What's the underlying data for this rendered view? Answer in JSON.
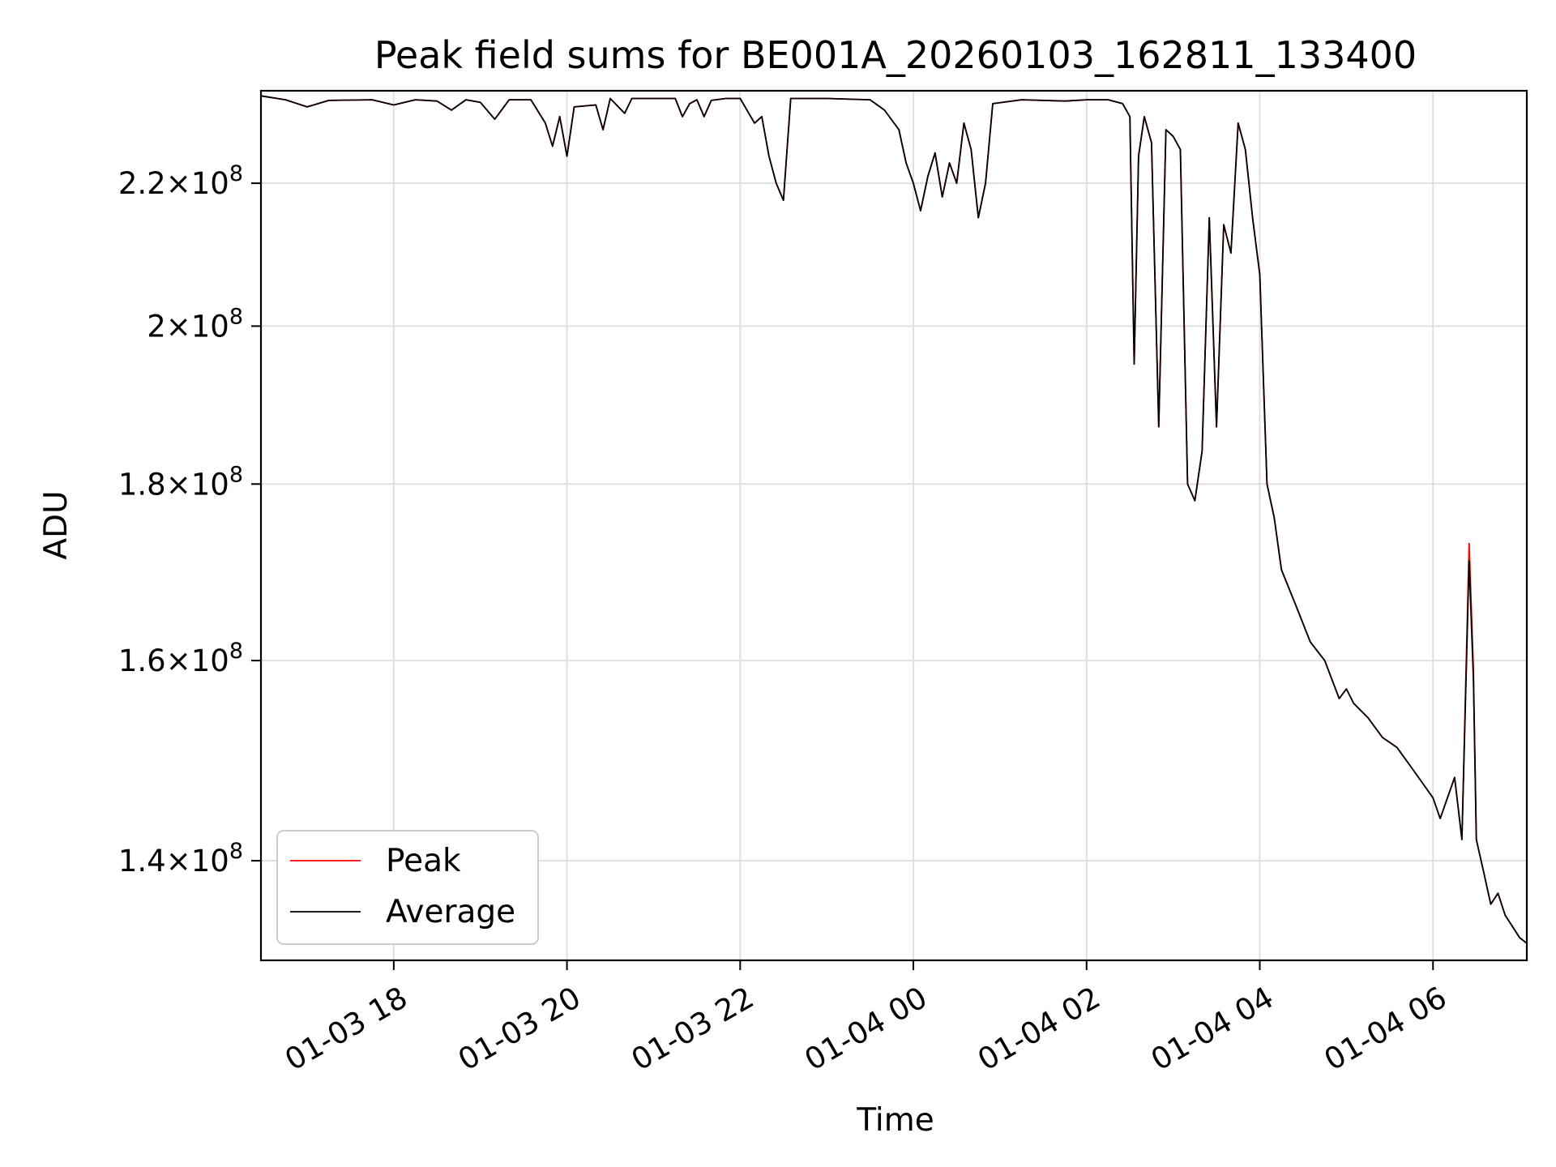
{
  "chart_data": {
    "type": "line",
    "title": "Peak field sums for BE001A_20260103_162811_133400",
    "xlabel": "Time",
    "ylabel": "ADU",
    "y_scale": "log",
    "xlim": [
      "2026-01-03 16:28",
      "2026-01-04 07:05"
    ],
    "ylim": [
      131000000.0,
      234000000.0
    ],
    "x_ticks": [
      {
        "at": "2026-01-03 18:00",
        "label": "01-03 18"
      },
      {
        "at": "2026-01-03 20:00",
        "label": "01-03 20"
      },
      {
        "at": "2026-01-03 22:00",
        "label": "01-03 22"
      },
      {
        "at": "2026-01-04 00:00",
        "label": "01-04 00"
      },
      {
        "at": "2026-01-04 02:00",
        "label": "01-04 02"
      },
      {
        "at": "2026-01-04 04:00",
        "label": "01-04 04"
      },
      {
        "at": "2026-01-04 06:00",
        "label": "01-04 06"
      }
    ],
    "y_ticks": [
      {
        "value": 140000000.0,
        "mantissa": "1.4"
      },
      {
        "value": 160000000.0,
        "mantissa": "1.6"
      },
      {
        "value": 180000000.0,
        "mantissa": "1.8"
      },
      {
        "value": 200000000.0,
        "mantissa": "2"
      },
      {
        "value": 220000000.0,
        "mantissa": "2.2"
      }
    ],
    "y_tick_base": "10",
    "y_tick_exponent": "8",
    "grid": true,
    "legend": {
      "position": "lower-left",
      "entries": [
        "Peak",
        "Average"
      ]
    },
    "series": [
      {
        "name": "Peak",
        "color": "#ff0000",
        "points": [
          [
            "2026-01-03 16:28",
            233200000.0
          ],
          [
            "2026-01-03 16:45",
            232600000.0
          ],
          [
            "2026-01-03 17:00",
            231500000.0
          ],
          [
            "2026-01-03 17:15",
            232500000.0
          ],
          [
            "2026-01-03 17:45",
            232600000.0
          ],
          [
            "2026-01-03 18:00",
            231800000.0
          ],
          [
            "2026-01-03 18:15",
            232600000.0
          ],
          [
            "2026-01-03 18:30",
            232400000.0
          ],
          [
            "2026-01-03 18:40",
            231000000.0
          ],
          [
            "2026-01-03 18:50",
            232600000.0
          ],
          [
            "2026-01-03 19:00",
            232200000.0
          ],
          [
            "2026-01-03 19:10",
            229600000.0
          ],
          [
            "2026-01-03 19:20",
            232600000.0
          ],
          [
            "2026-01-03 19:35",
            232600000.0
          ],
          [
            "2026-01-03 19:45",
            229000000.0
          ],
          [
            "2026-01-03 19:50",
            225500000.0
          ],
          [
            "2026-01-03 19:55",
            230000000.0
          ],
          [
            "2026-01-03 20:00",
            224000000.0
          ],
          [
            "2026-01-03 20:05",
            231500000.0
          ],
          [
            "2026-01-03 20:20",
            231800000.0
          ],
          [
            "2026-01-03 20:25",
            228000000.0
          ],
          [
            "2026-01-03 20:30",
            232800000.0
          ],
          [
            "2026-01-03 20:40",
            230500000.0
          ],
          [
            "2026-01-03 20:45",
            232800000.0
          ],
          [
            "2026-01-03 21:15",
            232800000.0
          ],
          [
            "2026-01-03 21:20",
            230000000.0
          ],
          [
            "2026-01-03 21:25",
            232000000.0
          ],
          [
            "2026-01-03 21:30",
            232600000.0
          ],
          [
            "2026-01-03 21:35",
            230000000.0
          ],
          [
            "2026-01-03 21:40",
            232500000.0
          ],
          [
            "2026-01-03 21:50",
            232800000.0
          ],
          [
            "2026-01-03 22:00",
            232800000.0
          ],
          [
            "2026-01-03 22:10",
            229000000.0
          ],
          [
            "2026-01-03 22:15",
            230000000.0
          ],
          [
            "2026-01-03 22:20",
            224000000.0
          ],
          [
            "2026-01-03 22:25",
            220000000.0
          ],
          [
            "2026-01-03 22:30",
            217500000.0
          ],
          [
            "2026-01-03 22:35",
            232800000.0
          ],
          [
            "2026-01-03 23:00",
            232800000.0
          ],
          [
            "2026-01-03 23:30",
            232600000.0
          ],
          [
            "2026-01-03 23:40",
            231000000.0
          ],
          [
            "2026-01-03 23:50",
            228000000.0
          ],
          [
            "2026-01-03 23:55",
            223000000.0
          ],
          [
            "2026-01-04 00:00",
            220000000.0
          ],
          [
            "2026-01-04 00:05",
            216000000.0
          ],
          [
            "2026-01-04 00:10",
            221000000.0
          ],
          [
            "2026-01-04 00:15",
            224500000.0
          ],
          [
            "2026-01-04 00:20",
            218000000.0
          ],
          [
            "2026-01-04 00:25",
            223000000.0
          ],
          [
            "2026-01-04 00:30",
            220000000.0
          ],
          [
            "2026-01-04 00:35",
            229000000.0
          ],
          [
            "2026-01-04 00:40",
            225000000.0
          ],
          [
            "2026-01-04 00:45",
            215000000.0
          ],
          [
            "2026-01-04 00:50",
            220000000.0
          ],
          [
            "2026-01-04 00:55",
            232000000.0
          ],
          [
            "2026-01-04 01:15",
            232600000.0
          ],
          [
            "2026-01-04 01:45",
            232400000.0
          ],
          [
            "2026-01-04 02:00",
            232600000.0
          ],
          [
            "2026-01-04 02:15",
            232600000.0
          ],
          [
            "2026-01-04 02:25",
            232000000.0
          ],
          [
            "2026-01-04 02:30",
            230000000.0
          ],
          [
            "2026-01-04 02:33",
            195000000.0
          ],
          [
            "2026-01-04 02:36",
            224000000.0
          ],
          [
            "2026-01-04 02:40",
            230000000.0
          ],
          [
            "2026-01-04 02:45",
            226000000.0
          ],
          [
            "2026-01-04 02:50",
            187000000.0
          ],
          [
            "2026-01-04 02:55",
            228000000.0
          ],
          [
            "2026-01-04 03:00",
            227000000.0
          ],
          [
            "2026-01-04 03:05",
            225000000.0
          ],
          [
            "2026-01-04 03:10",
            180000000.0
          ],
          [
            "2026-01-04 03:15",
            178000000.0
          ],
          [
            "2026-01-04 03:20",
            184000000.0
          ],
          [
            "2026-01-04 03:25",
            215000000.0
          ],
          [
            "2026-01-04 03:30",
            187000000.0
          ],
          [
            "2026-01-04 03:35",
            214000000.0
          ],
          [
            "2026-01-04 03:40",
            210000000.0
          ],
          [
            "2026-01-04 03:45",
            229000000.0
          ],
          [
            "2026-01-04 03:50",
            225000000.0
          ],
          [
            "2026-01-04 03:55",
            215000000.0
          ],
          [
            "2026-01-04 04:00",
            207000000.0
          ],
          [
            "2026-01-04 04:05",
            180000000.0
          ],
          [
            "2026-01-04 04:10",
            176000000.0
          ],
          [
            "2026-01-04 04:15",
            170000000.0
          ],
          [
            "2026-01-04 04:25",
            166000000.0
          ],
          [
            "2026-01-04 04:35",
            162000000.0
          ],
          [
            "2026-01-04 04:45",
            160000000.0
          ],
          [
            "2026-01-04 04:55",
            156000000.0
          ],
          [
            "2026-01-04 05:00",
            157000000.0
          ],
          [
            "2026-01-04 05:05",
            155500000.0
          ],
          [
            "2026-01-04 05:15",
            154000000.0
          ],
          [
            "2026-01-04 05:25",
            152000000.0
          ],
          [
            "2026-01-04 05:35",
            151000000.0
          ],
          [
            "2026-01-04 05:45",
            149000000.0
          ],
          [
            "2026-01-04 05:55",
            147000000.0
          ],
          [
            "2026-01-04 06:00",
            146000000.0
          ],
          [
            "2026-01-04 06:05",
            144000000.0
          ],
          [
            "2026-01-04 06:15",
            148000000.0
          ],
          [
            "2026-01-04 06:20",
            142000000.0
          ],
          [
            "2026-01-04 06:25",
            173000000.0
          ],
          [
            "2026-01-04 06:28",
            159000000.0
          ],
          [
            "2026-01-04 06:30",
            142000000.0
          ],
          [
            "2026-01-04 06:35",
            139000000.0
          ],
          [
            "2026-01-04 06:40",
            136000000.0
          ],
          [
            "2026-01-04 06:45",
            137000000.0
          ],
          [
            "2026-01-04 06:50",
            135000000.0
          ],
          [
            "2026-01-04 06:55",
            134000000.0
          ],
          [
            "2026-01-04 07:00",
            133000000.0
          ],
          [
            "2026-01-04 07:05",
            132500000.0
          ]
        ]
      },
      {
        "name": "Average",
        "color": "#000000",
        "points": [
          [
            "2026-01-03 16:28",
            233200000.0
          ],
          [
            "2026-01-03 16:45",
            232600000.0
          ],
          [
            "2026-01-03 17:00",
            231500000.0
          ],
          [
            "2026-01-03 17:15",
            232500000.0
          ],
          [
            "2026-01-03 17:45",
            232600000.0
          ],
          [
            "2026-01-03 18:00",
            231800000.0
          ],
          [
            "2026-01-03 18:15",
            232600000.0
          ],
          [
            "2026-01-03 18:30",
            232400000.0
          ],
          [
            "2026-01-03 18:40",
            231000000.0
          ],
          [
            "2026-01-03 18:50",
            232600000.0
          ],
          [
            "2026-01-03 19:00",
            232200000.0
          ],
          [
            "2026-01-03 19:10",
            229600000.0
          ],
          [
            "2026-01-03 19:20",
            232600000.0
          ],
          [
            "2026-01-03 19:35",
            232600000.0
          ],
          [
            "2026-01-03 19:45",
            229000000.0
          ],
          [
            "2026-01-03 19:50",
            225500000.0
          ],
          [
            "2026-01-03 19:55",
            230000000.0
          ],
          [
            "2026-01-03 20:00",
            224000000.0
          ],
          [
            "2026-01-03 20:05",
            231500000.0
          ],
          [
            "2026-01-03 20:20",
            231800000.0
          ],
          [
            "2026-01-03 20:25",
            228000000.0
          ],
          [
            "2026-01-03 20:30",
            232800000.0
          ],
          [
            "2026-01-03 20:40",
            230500000.0
          ],
          [
            "2026-01-03 20:45",
            232800000.0
          ],
          [
            "2026-01-03 21:15",
            232800000.0
          ],
          [
            "2026-01-03 21:20",
            230000000.0
          ],
          [
            "2026-01-03 21:25",
            232000000.0
          ],
          [
            "2026-01-03 21:30",
            232600000.0
          ],
          [
            "2026-01-03 21:35",
            230000000.0
          ],
          [
            "2026-01-03 21:40",
            232500000.0
          ],
          [
            "2026-01-03 21:50",
            232800000.0
          ],
          [
            "2026-01-03 22:00",
            232800000.0
          ],
          [
            "2026-01-03 22:10",
            229000000.0
          ],
          [
            "2026-01-03 22:15",
            230000000.0
          ],
          [
            "2026-01-03 22:20",
            224000000.0
          ],
          [
            "2026-01-03 22:25",
            220000000.0
          ],
          [
            "2026-01-03 22:30",
            217500000.0
          ],
          [
            "2026-01-03 22:35",
            232800000.0
          ],
          [
            "2026-01-03 23:00",
            232800000.0
          ],
          [
            "2026-01-03 23:30",
            232600000.0
          ],
          [
            "2026-01-03 23:40",
            231000000.0
          ],
          [
            "2026-01-03 23:50",
            228000000.0
          ],
          [
            "2026-01-03 23:55",
            223000000.0
          ],
          [
            "2026-01-04 00:00",
            220000000.0
          ],
          [
            "2026-01-04 00:05",
            216000000.0
          ],
          [
            "2026-01-04 00:10",
            221000000.0
          ],
          [
            "2026-01-04 00:15",
            224500000.0
          ],
          [
            "2026-01-04 00:20",
            218000000.0
          ],
          [
            "2026-01-04 00:25",
            223000000.0
          ],
          [
            "2026-01-04 00:30",
            220000000.0
          ],
          [
            "2026-01-04 00:35",
            229000000.0
          ],
          [
            "2026-01-04 00:40",
            225000000.0
          ],
          [
            "2026-01-04 00:45",
            215000000.0
          ],
          [
            "2026-01-04 00:50",
            220000000.0
          ],
          [
            "2026-01-04 00:55",
            232000000.0
          ],
          [
            "2026-01-04 01:15",
            232600000.0
          ],
          [
            "2026-01-04 01:45",
            232400000.0
          ],
          [
            "2026-01-04 02:00",
            232600000.0
          ],
          [
            "2026-01-04 02:15",
            232600000.0
          ],
          [
            "2026-01-04 02:25",
            232000000.0
          ],
          [
            "2026-01-04 02:30",
            230000000.0
          ],
          [
            "2026-01-04 02:33",
            195000000.0
          ],
          [
            "2026-01-04 02:36",
            224000000.0
          ],
          [
            "2026-01-04 02:40",
            230000000.0
          ],
          [
            "2026-01-04 02:45",
            226000000.0
          ],
          [
            "2026-01-04 02:50",
            187000000.0
          ],
          [
            "2026-01-04 02:55",
            228000000.0
          ],
          [
            "2026-01-04 03:00",
            227000000.0
          ],
          [
            "2026-01-04 03:05",
            225000000.0
          ],
          [
            "2026-01-04 03:10",
            180000000.0
          ],
          [
            "2026-01-04 03:15",
            178000000.0
          ],
          [
            "2026-01-04 03:20",
            184000000.0
          ],
          [
            "2026-01-04 03:25",
            215000000.0
          ],
          [
            "2026-01-04 03:30",
            187000000.0
          ],
          [
            "2026-01-04 03:35",
            214000000.0
          ],
          [
            "2026-01-04 03:40",
            210000000.0
          ],
          [
            "2026-01-04 03:45",
            229000000.0
          ],
          [
            "2026-01-04 03:50",
            225000000.0
          ],
          [
            "2026-01-04 03:55",
            215000000.0
          ],
          [
            "2026-01-04 04:00",
            207000000.0
          ],
          [
            "2026-01-04 04:05",
            180000000.0
          ],
          [
            "2026-01-04 04:10",
            176000000.0
          ],
          [
            "2026-01-04 04:15",
            170000000.0
          ],
          [
            "2026-01-04 04:25",
            166000000.0
          ],
          [
            "2026-01-04 04:35",
            162000000.0
          ],
          [
            "2026-01-04 04:45",
            160000000.0
          ],
          [
            "2026-01-04 04:55",
            156000000.0
          ],
          [
            "2026-01-04 05:00",
            157000000.0
          ],
          [
            "2026-01-04 05:05",
            155500000.0
          ],
          [
            "2026-01-04 05:15",
            154000000.0
          ],
          [
            "2026-01-04 05:25",
            152000000.0
          ],
          [
            "2026-01-04 05:35",
            151000000.0
          ],
          [
            "2026-01-04 05:45",
            149000000.0
          ],
          [
            "2026-01-04 05:55",
            147000000.0
          ],
          [
            "2026-01-04 06:00",
            146000000.0
          ],
          [
            "2026-01-04 06:05",
            144000000.0
          ],
          [
            "2026-01-04 06:15",
            148000000.0
          ],
          [
            "2026-01-04 06:20",
            142000000.0
          ],
          [
            "2026-01-04 06:25",
            171000000.0
          ],
          [
            "2026-01-04 06:28",
            158000000.0
          ],
          [
            "2026-01-04 06:30",
            142000000.0
          ],
          [
            "2026-01-04 06:35",
            139000000.0
          ],
          [
            "2026-01-04 06:40",
            136000000.0
          ],
          [
            "2026-01-04 06:45",
            137000000.0
          ],
          [
            "2026-01-04 06:50",
            135000000.0
          ],
          [
            "2026-01-04 06:55",
            134000000.0
          ],
          [
            "2026-01-04 07:00",
            133000000.0
          ],
          [
            "2026-01-04 07:05",
            132500000.0
          ]
        ]
      }
    ]
  }
}
